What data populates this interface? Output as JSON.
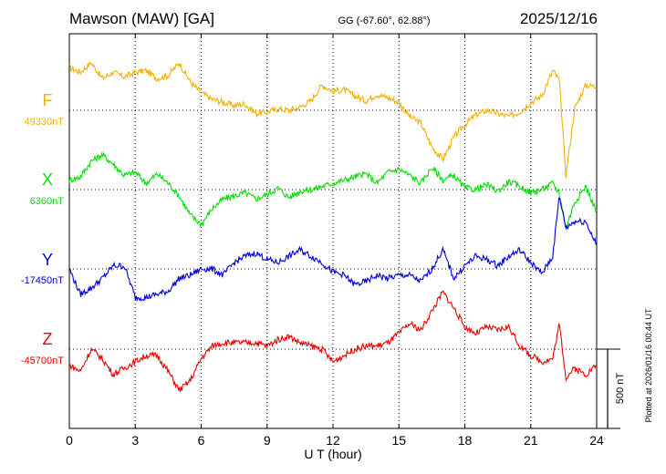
{
  "header": {
    "station": "Mawson (MAW)  [GA]",
    "coords": "GG (-67.60°,  62.88°)",
    "date": "2025/12/16"
  },
  "footer": {
    "plotted": "Plotted at 2026/01/16 00:44 UT"
  },
  "scale_bar": {
    "label": "500 nT",
    "value_nT": 500
  },
  "colors": {
    "F": "#f5b000",
    "X": "#00e000",
    "Y": "#0000dd",
    "Z": "#ee0000",
    "grid": "#000000"
  },
  "chart_data": {
    "type": "line",
    "xlabel": "U T (hour)",
    "ylabel": "",
    "xlim": [
      0,
      24
    ],
    "x_ticks": [
      0,
      3,
      6,
      9,
      12,
      15,
      18,
      21,
      24
    ],
    "x_tick_labels": [
      "0",
      "3",
      "6",
      "9",
      "12",
      "15",
      "18",
      "21",
      "24"
    ],
    "grid": "dotted",
    "units": "nT",
    "series": [
      {
        "name": "F",
        "baseline_label": "49330nT",
        "baseline_nT": 49330,
        "x": [
          0,
          0.5,
          1,
          1.5,
          2,
          2.5,
          3,
          3.5,
          4,
          4.5,
          5,
          5.5,
          6,
          6.5,
          7,
          7.5,
          8,
          8.5,
          9,
          9.5,
          10,
          10.5,
          11,
          11.5,
          12,
          12.5,
          13,
          13.5,
          14,
          14.5,
          15,
          15.5,
          16,
          16.5,
          17,
          17.5,
          18,
          18.5,
          19,
          19.5,
          20,
          20.5,
          21,
          21.5,
          22,
          22.3,
          22.6,
          23,
          23.5,
          24
        ],
        "values": [
          270,
          240,
          300,
          200,
          240,
          210,
          240,
          250,
          200,
          220,
          300,
          180,
          110,
          70,
          50,
          30,
          40,
          -20,
          -10,
          10,
          0,
          20,
          60,
          160,
          120,
          130,
          90,
          60,
          100,
          80,
          50,
          -40,
          -80,
          -230,
          -310,
          -170,
          -90,
          -30,
          0,
          -20,
          -40,
          -10,
          50,
          90,
          250,
          190,
          -410,
          10,
          160,
          150
        ]
      },
      {
        "name": "X",
        "baseline_label": "6360nT",
        "baseline_nT": 6360,
        "x": [
          0,
          0.5,
          1,
          1.5,
          2,
          2.5,
          3,
          3.5,
          4,
          4.5,
          5,
          5.5,
          6,
          6.5,
          7,
          7.5,
          8,
          8.5,
          9,
          9.5,
          10,
          10.5,
          11,
          11.5,
          12,
          12.5,
          13,
          13.5,
          14,
          14.5,
          15,
          15.5,
          16,
          16.5,
          17,
          17.5,
          18,
          18.5,
          19,
          19.5,
          20,
          20.5,
          21,
          21.5,
          22,
          22.3,
          22.6,
          23,
          23.5,
          24
        ],
        "values": [
          60,
          80,
          180,
          220,
          160,
          90,
          110,
          40,
          100,
          40,
          -40,
          -160,
          -220,
          -120,
          -60,
          -40,
          -20,
          -60,
          -30,
          10,
          -50,
          -10,
          0,
          20,
          40,
          60,
          80,
          100,
          40,
          110,
          130,
          90,
          40,
          140,
          60,
          90,
          10,
          0,
          30,
          -10,
          50,
          20,
          -20,
          0,
          40,
          -20,
          -240,
          -80,
          20,
          -140
        ]
      },
      {
        "name": "Y",
        "baseline_label": "-17450nT",
        "baseline_nT": -17450,
        "x": [
          0,
          0.5,
          1,
          1.5,
          2,
          2.5,
          3,
          3.5,
          4,
          4.5,
          5,
          5.5,
          6,
          6.5,
          7,
          7.5,
          8,
          8.5,
          9,
          9.5,
          10,
          10.5,
          11,
          11.5,
          12,
          12.5,
          13,
          13.5,
          14,
          14.5,
          15,
          15.5,
          16,
          16.5,
          17,
          17.5,
          18,
          18.5,
          19,
          19.5,
          20,
          20.5,
          21,
          21.5,
          22,
          22.3,
          22.6,
          23,
          23.5,
          24
        ],
        "values": [
          0,
          -160,
          -120,
          -60,
          20,
          20,
          -180,
          -180,
          -160,
          -140,
          -60,
          -40,
          0,
          0,
          -40,
          40,
          80,
          100,
          60,
          40,
          80,
          120,
          80,
          40,
          -20,
          -40,
          -100,
          -80,
          -40,
          -60,
          -40,
          -40,
          -80,
          0,
          120,
          -60,
          20,
          80,
          60,
          20,
          80,
          120,
          40,
          -30,
          80,
          460,
          260,
          300,
          300,
          150
        ]
      },
      {
        "name": "Z",
        "baseline_label": "-45700nT",
        "baseline_nT": -45700,
        "x": [
          0,
          0.5,
          1,
          1.5,
          2,
          2.5,
          3,
          3.5,
          4,
          4.5,
          5,
          5.5,
          6,
          6.5,
          7,
          7.5,
          8,
          8.5,
          9,
          9.5,
          10,
          10.5,
          11,
          11.5,
          12,
          12.5,
          13,
          13.5,
          14,
          14.5,
          15,
          15.5,
          16,
          16.5,
          17,
          17.5,
          18,
          18.5,
          19,
          19.5,
          20,
          20.5,
          21,
          21.5,
          22,
          22.3,
          22.6,
          23,
          23.5,
          24
        ],
        "values": [
          -100,
          -140,
          0,
          -60,
          -160,
          -120,
          -80,
          -40,
          -40,
          -140,
          -260,
          -200,
          -60,
          20,
          40,
          40,
          40,
          40,
          20,
          60,
          80,
          40,
          20,
          0,
          -80,
          -40,
          0,
          20,
          20,
          40,
          100,
          160,
          120,
          240,
          360,
          260,
          140,
          100,
          140,
          120,
          140,
          20,
          -40,
          -80,
          -60,
          160,
          -180,
          -120,
          -160,
          -100
        ]
      }
    ]
  }
}
